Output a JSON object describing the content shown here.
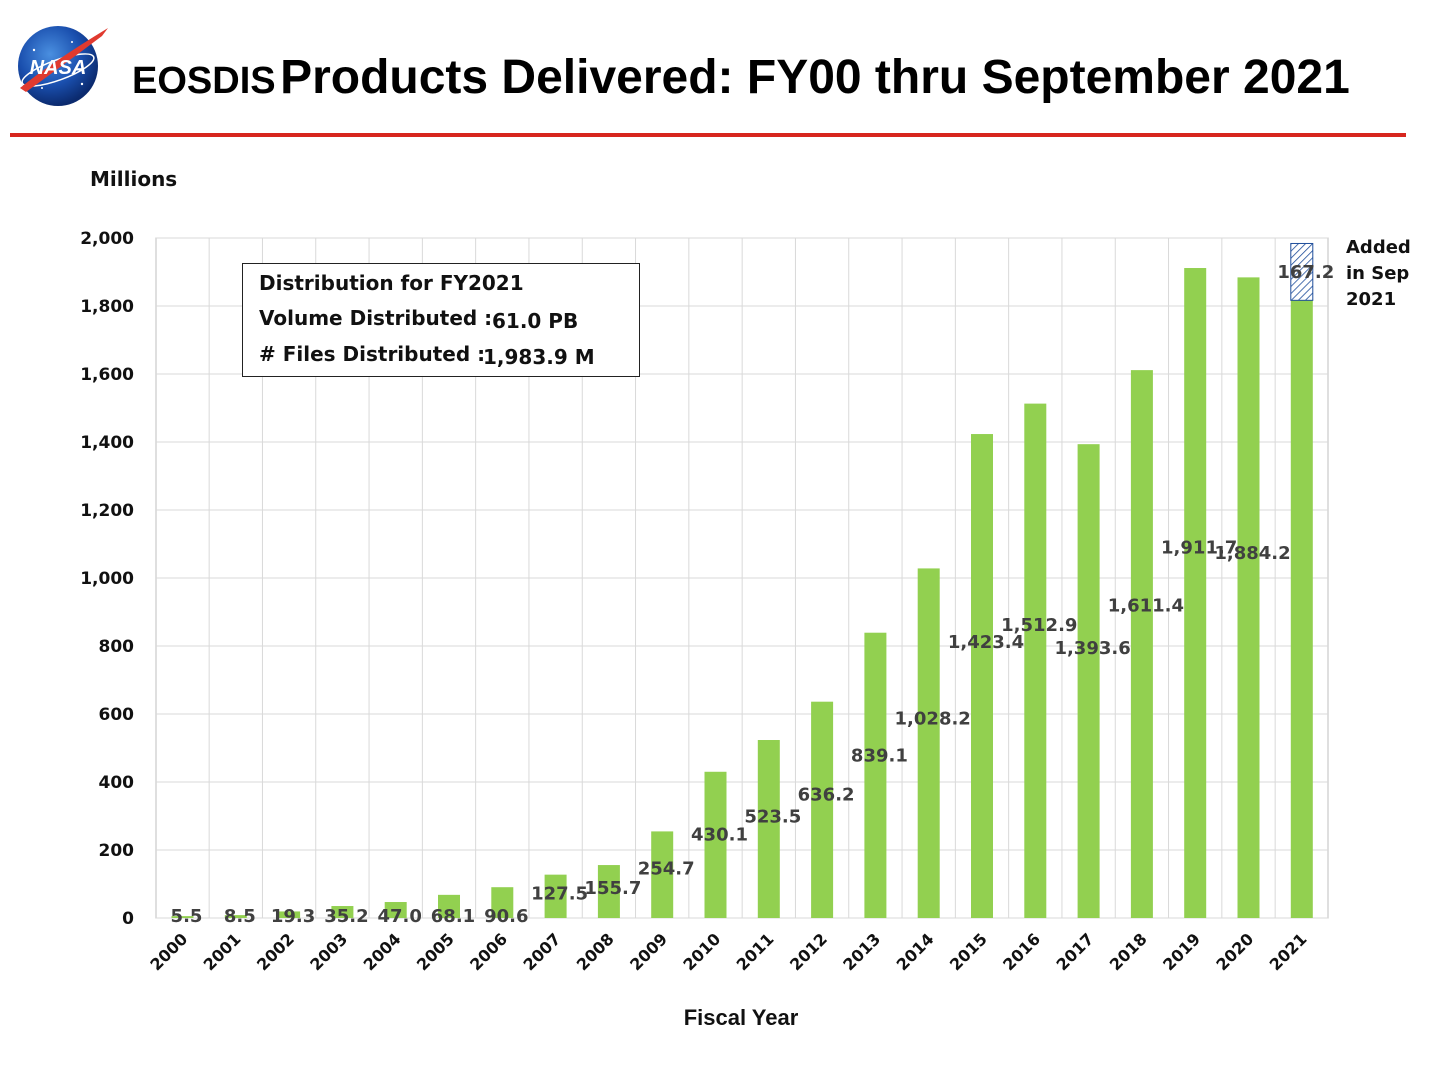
{
  "header": {
    "title_prefix": "EOSDIS",
    "title_main": "Products Delivered: FY00 thru September 2021",
    "logo_text": "NASA"
  },
  "info_box": {
    "title": "Distribution for FY2021",
    "volume_label": "Volume Distributed :",
    "volume_value": "61.0 PB",
    "files_label": "# Files Distributed :",
    "files_value": "1,983.9 M"
  },
  "colors": {
    "bar": "#92d050",
    "hatch": "#1f4e9b",
    "rule": "#d7261e",
    "grid": "#d9d9d9",
    "label": "#404040"
  },
  "chart_data": {
    "type": "bar",
    "ylabel": "Millions",
    "xlabel": "Fiscal Year",
    "ylim": [
      0,
      2000
    ],
    "yticks": [
      0,
      200,
      400,
      600,
      800,
      1000,
      1200,
      1400,
      1600,
      1800,
      2000
    ],
    "ytick_labels": [
      "0",
      "200",
      "400",
      "600",
      "800",
      "1,000",
      "1,200",
      "1,400",
      "1,600",
      "1,800",
      "2,000"
    ],
    "grid": true,
    "categories": [
      "2000",
      "2001",
      "2002",
      "2003",
      "2004",
      "2005",
      "2006",
      "2007",
      "2008",
      "2009",
      "2010",
      "2011",
      "2012",
      "2013",
      "2014",
      "2015",
      "2016",
      "2017",
      "2018",
      "2019",
      "2020",
      "2021"
    ],
    "values": [
      5.5,
      8.5,
      19.3,
      35.2,
      47.0,
      68.1,
      90.6,
      127.5,
      155.7,
      254.7,
      430.1,
      523.5,
      636.2,
      839.1,
      1028.2,
      1423.4,
      1512.9,
      1393.6,
      1611.4,
      1911.7,
      1884.2,
      1816.7
    ],
    "value_labels": [
      "5.5",
      "8.5",
      "19.3",
      "35.2",
      "47.0",
      "68.1",
      "90.6",
      "127.5",
      "155.7",
      "254.7",
      "430.1",
      "523.5",
      "636.2",
      "839.1",
      "1,028.2",
      "1,423.4",
      "1,512.9",
      "1,393.6",
      "1,611.4",
      "1,911.7",
      "1,884.2",
      ""
    ],
    "stacked_addition": {
      "category": "2021",
      "value": 167.2,
      "label": "167.2",
      "annotation": [
        "Added",
        "in Sep",
        "2021"
      ],
      "style": "hatched"
    }
  }
}
